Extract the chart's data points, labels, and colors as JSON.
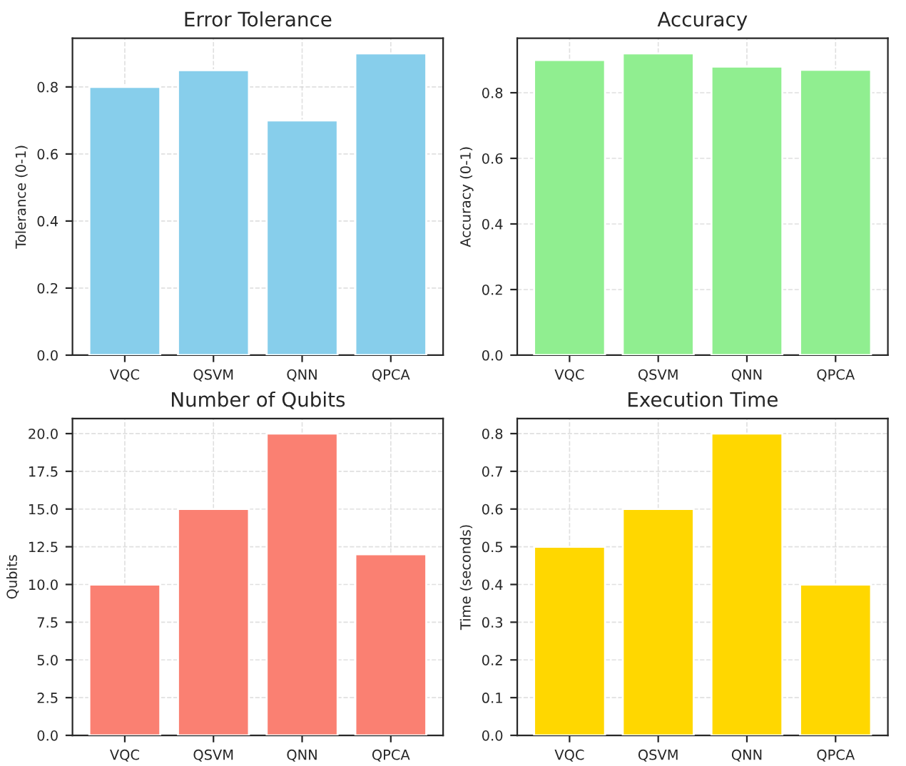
{
  "chart_data": [
    {
      "type": "bar",
      "title": "Error Tolerance",
      "ylabel": "Tolerance (0-1)",
      "categories": [
        "VQC",
        "QSVM",
        "QNN",
        "QPCA"
      ],
      "values": [
        0.8,
        0.85,
        0.7,
        0.9
      ],
      "color": "#87ceeb",
      "ylim": [
        0,
        0.945
      ],
      "yticks": [
        {
          "value": 0,
          "label": "0.0"
        },
        0.2,
        0.4,
        0.6,
        0.8
      ],
      "grid": true
    },
    {
      "type": "bar",
      "title": "Accuracy",
      "ylabel": "Accuracy (0-1)",
      "categories": [
        "VQC",
        "QSVM",
        "QNN",
        "QPCA"
      ],
      "values": [
        0.9,
        0.92,
        0.88,
        0.87
      ],
      "color": "#90ee90",
      "ylim": [
        0,
        0.966
      ],
      "yticks": [
        {
          "value": 0,
          "label": "0.0"
        },
        0.2,
        0.4,
        0.6,
        0.8
      ],
      "grid": true
    },
    {
      "type": "bar",
      "title": "Number of Qubits",
      "ylabel": "Qubits",
      "categories": [
        "VQC",
        "QSVM",
        "QNN",
        "QPCA"
      ],
      "values": [
        10,
        15,
        20,
        12
      ],
      "color": "#fa8072",
      "ylim": [
        0,
        21
      ],
      "yticks": [
        {
          "value": 0,
          "label": "0.0"
        },
        2.5,
        {
          "value": 5,
          "label": "5.0"
        },
        7.5,
        {
          "value": 10,
          "label": "10.0"
        },
        12.5,
        {
          "value": 15,
          "label": "15.0"
        },
        17.5,
        {
          "value": 20,
          "label": "20.0"
        }
      ],
      "grid": true
    },
    {
      "type": "bar",
      "title": "Execution Time",
      "ylabel": "Time (seconds)",
      "categories": [
        "VQC",
        "QSVM",
        "QNN",
        "QPCA"
      ],
      "values": [
        0.5,
        0.6,
        0.8,
        0.4
      ],
      "color": "#ffd700",
      "ylim": [
        0,
        0.84
      ],
      "yticks": [
        {
          "value": 0,
          "label": "0.0"
        },
        0.1,
        0.2,
        0.3,
        0.4,
        0.5,
        0.6,
        0.7,
        0.8
      ],
      "grid": true
    }
  ]
}
